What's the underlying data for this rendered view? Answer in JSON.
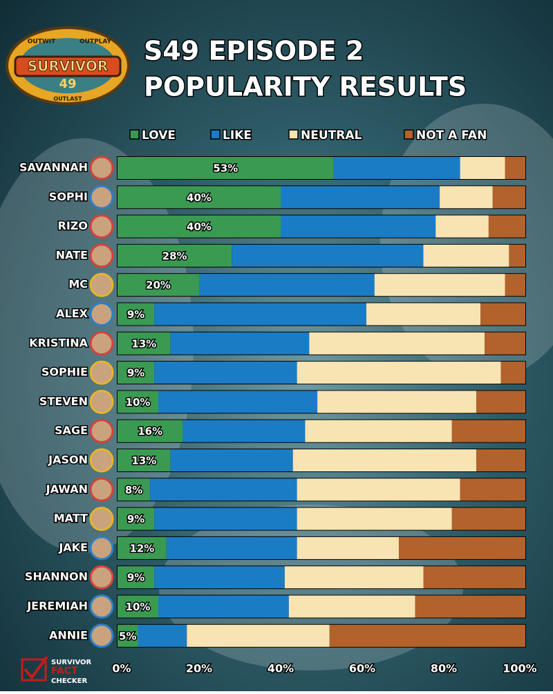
{
  "logo": {
    "top_left": "OUTWIT",
    "top_right": "OUTPLAY",
    "name": "SURVIVOR",
    "season": "49",
    "bottom": "OUTLAST"
  },
  "watermark": [
    "SURVIVOR",
    "FACT",
    "CHECKER"
  ],
  "chart_data": {
    "type": "stacked-bar-horizontal",
    "title": [
      "S49 EPISODE 2",
      "POPULARITY RESULTS"
    ],
    "categories": [
      "SAVANNAH",
      "SOPHI",
      "RIZO",
      "NATE",
      "MC",
      "ALEX",
      "KRISTINA",
      "SOPHIE",
      "STEVEN",
      "SAGE",
      "JASON",
      "JAWAN",
      "MATT",
      "JAKE",
      "SHANNON",
      "JEREMIAH",
      "ANNIE"
    ],
    "series": [
      {
        "name": "LOVE",
        "color": "#3b9a52",
        "values": [
          53,
          40,
          40,
          28,
          20,
          9,
          13,
          9,
          10,
          16,
          13,
          8,
          9,
          12,
          9,
          10,
          5
        ],
        "value_labels": [
          "53%",
          "40%",
          "40%",
          "28%",
          "20%",
          "9%",
          "13%",
          "9%",
          "10%",
          "16%",
          "13%",
          "8%",
          "9%",
          "12%",
          "9%",
          "10%",
          "5%"
        ]
      },
      {
        "name": "LIKE",
        "color": "#1b7cc6",
        "values": [
          31,
          39,
          38,
          47,
          43,
          52,
          34,
          35,
          39,
          30,
          30,
          36,
          35,
          32,
          32,
          32,
          12
        ]
      },
      {
        "name": "NEUTRAL",
        "color": "#f8e4b2",
        "values": [
          11,
          13,
          13,
          21,
          32,
          28,
          43,
          50,
          39,
          36,
          45,
          40,
          38,
          25,
          34,
          31,
          35
        ]
      },
      {
        "name": "NOT A FAN",
        "color": "#b3622c",
        "values": [
          5,
          8,
          9,
          4,
          5,
          11,
          10,
          6,
          12,
          18,
          12,
          16,
          18,
          31,
          25,
          27,
          48
        ]
      }
    ],
    "xlim": [
      0,
      100
    ],
    "xticks": [
      {
        "value": 0,
        "label": "0%"
      },
      {
        "value": 20,
        "label": "20%"
      },
      {
        "value": 40,
        "label": "40%"
      },
      {
        "value": 60,
        "label": "60%"
      },
      {
        "value": 80,
        "label": "80%"
      },
      {
        "value": 100,
        "label": "100%"
      }
    ]
  }
}
